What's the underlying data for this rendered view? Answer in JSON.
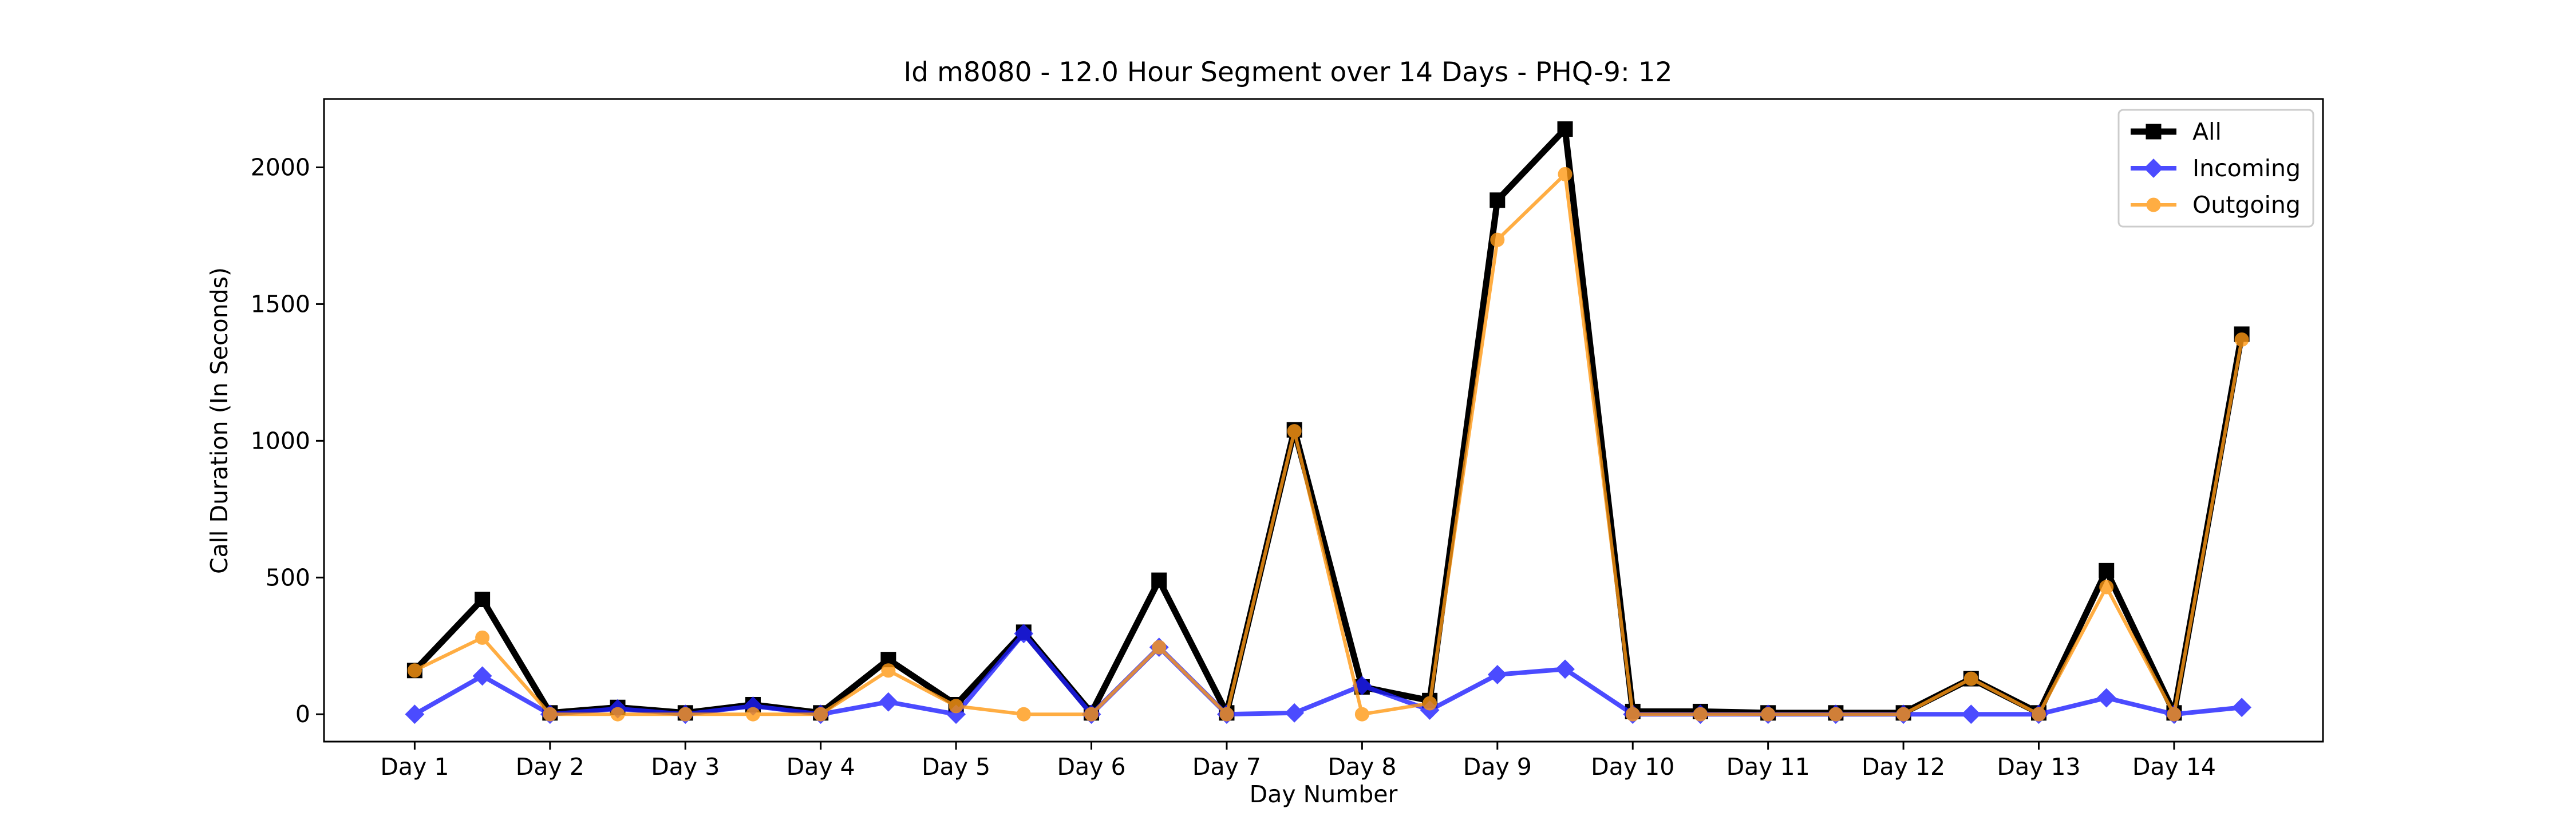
{
  "chart_data": {
    "type": "line",
    "title": "Id m8080 - 12.0 Hour Segment over 14 Days - PHQ-9: 12",
    "xlabel": "Day Number",
    "ylabel": "Call Duration (In Seconds)",
    "xlim": [
      0.33,
      15.1
    ],
    "ylim": [
      -100,
      2250
    ],
    "x_tick_values": [
      1,
      2,
      3,
      4,
      5,
      6,
      7,
      8,
      9,
      10,
      11,
      12,
      13,
      14
    ],
    "x_tick_labels": [
      "Day 1",
      "Day 2",
      "Day 3",
      "Day 4",
      "Day 5",
      "Day 6",
      "Day 7",
      "Day 8",
      "Day 9",
      "Day 10",
      "Day 11",
      "Day 12",
      "Day 13",
      "Day 14"
    ],
    "y_ticks": [
      0,
      500,
      1000,
      1500,
      2000
    ],
    "x": [
      1,
      1.5,
      2,
      2.5,
      3,
      3.5,
      4,
      4.5,
      5,
      5.5,
      6,
      6.5,
      7,
      7.5,
      8,
      8.5,
      9,
      9.5,
      10,
      10.5,
      11,
      11.5,
      12,
      12.5,
      13,
      13.5,
      14,
      14.5
    ],
    "series": [
      {
        "name": "All",
        "color": "#000000",
        "marker": "square",
        "values": [
          160,
          420,
          5,
          25,
          5,
          35,
          5,
          200,
          35,
          300,
          5,
          490,
          5,
          1040,
          100,
          50,
          1880,
          2140,
          10,
          10,
          5,
          5,
          5,
          130,
          5,
          525,
          5,
          1390
        ]
      },
      {
        "name": "Incoming",
        "color": "#1f1fff",
        "marker": "diamond",
        "values": [
          0,
          140,
          0,
          20,
          0,
          30,
          0,
          45,
          0,
          295,
          0,
          245,
          0,
          5,
          105,
          15,
          145,
          165,
          0,
          0,
          0,
          0,
          0,
          0,
          0,
          60,
          0,
          25
        ]
      },
      {
        "name": "Outgoing",
        "color": "#ff9914",
        "marker": "circle",
        "values": [
          160,
          280,
          0,
          0,
          0,
          0,
          0,
          160,
          30,
          0,
          0,
          245,
          0,
          1035,
          0,
          40,
          1735,
          1975,
          0,
          0,
          0,
          0,
          0,
          130,
          0,
          465,
          0,
          1370
        ]
      }
    ],
    "legend_position": "top-right",
    "grid": false
  }
}
